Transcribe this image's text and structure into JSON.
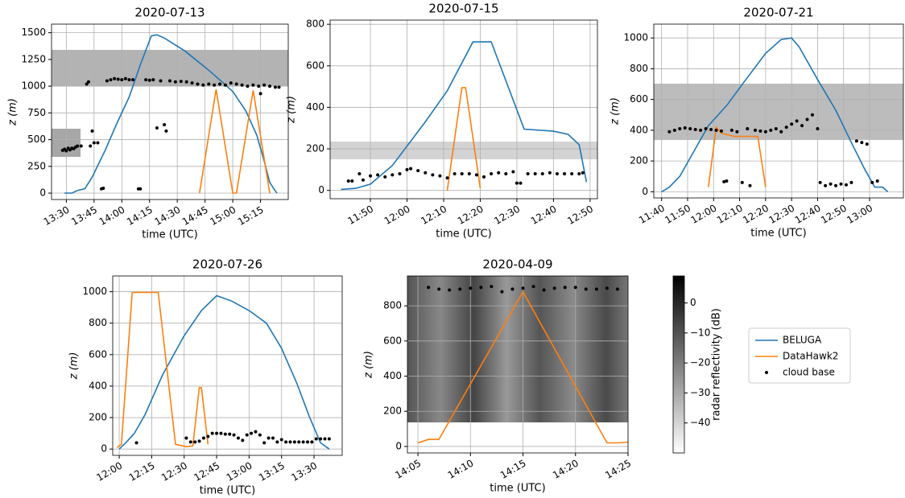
{
  "chart_data": [
    {
      "type": "line",
      "title": "2020-07-13",
      "xlabel": "time (UTC)",
      "ylabel": "z (m)",
      "grid": true,
      "xlim": [
        "13:22",
        "15:30"
      ],
      "xticks": [
        "13:30",
        "13:45",
        "14:00",
        "14:15",
        "14:30",
        "14:45",
        "15:00",
        "15:15"
      ],
      "ylim": [
        -60,
        1580
      ],
      "yticks": [
        0,
        250,
        500,
        750,
        1000,
        1250,
        1500
      ],
      "series": [
        {
          "name": "BELUGA",
          "kind": "line",
          "color": "#1f77b4",
          "x": [
            "13:29",
            "13:33",
            "13:36",
            "13:40",
            "13:44",
            "13:51",
            "13:57",
            "14:04",
            "14:10",
            "14:16",
            "14:19",
            "14:23",
            "14:34",
            "14:47",
            "15:00",
            "15:07",
            "15:13",
            "15:17",
            "15:20",
            "15:23",
            "15:24"
          ],
          "values": [
            0,
            0,
            25,
            40,
            150,
            400,
            640,
            900,
            1200,
            1470,
            1480,
            1450,
            1330,
            1150,
            950,
            770,
            540,
            300,
            100,
            20,
            0
          ]
        },
        {
          "name": "DataHawk2",
          "kind": "line",
          "color": "#ff7f0e",
          "x": [
            "14:42",
            "14:51",
            "15:00",
            "15:02",
            "15:11",
            "15:20"
          ],
          "values": [
            0,
            970,
            0,
            0,
            960,
            0
          ]
        },
        {
          "name": "cloud base",
          "kind": "scatter",
          "color": "#000000",
          "x": [
            "13:28",
            "13:29",
            "13:30",
            "13:31",
            "13:32",
            "13:33",
            "13:34",
            "13:35",
            "13:36",
            "13:38",
            "13:41",
            "13:42",
            "13:43",
            "13:44",
            "13:45",
            "13:47",
            "13:49",
            "13:50",
            "13:52",
            "13:54",
            "13:56",
            "13:58",
            "14:00",
            "14:02",
            "14:04",
            "14:06",
            "14:09",
            "14:10",
            "14:13",
            "14:15",
            "14:17",
            "14:19",
            "14:21",
            "14:23",
            "14:24",
            "14:26",
            "14:29",
            "14:32",
            "14:35",
            "14:38",
            "14:41",
            "14:44",
            "14:47",
            "14:50",
            "14:53",
            "14:56",
            "14:59",
            "15:02",
            "15:05",
            "15:08",
            "15:11",
            "15:14",
            "15:15",
            "15:17",
            "15:20",
            "15:23",
            "15:25"
          ],
          "values": [
            400,
            410,
            395,
            420,
            405,
            420,
            415,
            430,
            440,
            440,
            1020,
            1040,
            440,
            580,
            470,
            470,
            40,
            45,
            1050,
            1060,
            1070,
            1065,
            1060,
            1070,
            1060,
            1060,
            40,
            40,
            1060,
            1055,
            1060,
            610,
            1050,
            640,
            580,
            1050,
            1040,
            1045,
            1040,
            1030,
            1020,
            1010,
            1020,
            1010,
            1020,
            1010,
            1030,
            1020,
            1010,
            1000,
            1010,
            1000,
            930,
            1010,
            1000,
            990,
            990
          ]
        }
      ]
    },
    {
      "type": "line",
      "title": "2020-07-15",
      "xlabel": "time (UTC)",
      "ylabel": "z (m)",
      "grid": true,
      "xlim": [
        "11:39",
        "12:52"
      ],
      "xticks": [
        "11:50",
        "12:00",
        "12:10",
        "12:20",
        "12:30",
        "12:40",
        "12:50"
      ],
      "ylim": [
        -40,
        820
      ],
      "yticks": [
        0,
        200,
        400,
        600,
        800
      ],
      "series": [
        {
          "name": "BELUGA",
          "kind": "line",
          "color": "#1f77b4",
          "x": [
            "11:42",
            "11:46",
            "11:50",
            "11:56",
            "12:05",
            "12:11",
            "12:18",
            "12:23",
            "12:32",
            "12:40",
            "12:44",
            "12:47",
            "12:49"
          ],
          "values": [
            5,
            10,
            30,
            120,
            330,
            480,
            715,
            715,
            295,
            285,
            270,
            220,
            40
          ]
        },
        {
          "name": "DataHawk2",
          "kind": "line",
          "color": "#ff7f0e",
          "x": [
            "12:11",
            "12:15",
            "12:16",
            "12:20"
          ],
          "values": [
            0,
            495,
            495,
            10
          ]
        },
        {
          "name": "cloud base",
          "kind": "scatter",
          "color": "#000000",
          "x": [
            "11:44",
            "11:45",
            "11:47",
            "11:48",
            "11:50",
            "11:52",
            "11:54",
            "11:56",
            "11:58",
            "12:00",
            "12:01",
            "12:03",
            "12:05",
            "12:07",
            "12:09",
            "12:11",
            "12:13",
            "12:15",
            "12:17",
            "12:19",
            "12:21",
            "12:23",
            "12:25",
            "12:27",
            "12:29",
            "12:30",
            "12:31",
            "12:33",
            "12:35",
            "12:37",
            "12:39",
            "12:41",
            "12:43",
            "12:45",
            "12:47",
            "12:48"
          ],
          "values": [
            45,
            45,
            80,
            50,
            70,
            75,
            65,
            75,
            80,
            100,
            105,
            95,
            85,
            75,
            70,
            60,
            80,
            80,
            80,
            75,
            65,
            80,
            85,
            80,
            90,
            35,
            35,
            80,
            80,
            80,
            85,
            80,
            80,
            80,
            80,
            85
          ]
        }
      ]
    },
    {
      "type": "line",
      "title": "2020-07-21",
      "xlabel": "time (UTC)",
      "ylabel": "z (m)",
      "grid": true,
      "xlim": [
        "11:37",
        "13:13"
      ],
      "xticks": [
        "11:40",
        "11:50",
        "12:00",
        "12:10",
        "12:20",
        "12:30",
        "12:40",
        "12:50",
        "13:00"
      ],
      "ylim": [
        -40,
        1090
      ],
      "yticks": [
        0,
        200,
        400,
        600,
        800,
        1000
      ],
      "series": [
        {
          "name": "BELUGA",
          "kind": "line",
          "color": "#1f77b4",
          "x": [
            "11:40",
            "11:43",
            "11:47",
            "11:52",
            "11:58",
            "12:05",
            "12:12",
            "12:20",
            "12:26",
            "12:30",
            "12:33",
            "12:40",
            "12:47",
            "12:53",
            "12:58",
            "13:02",
            "13:05",
            "13:07"
          ],
          "values": [
            0,
            30,
            100,
            250,
            430,
            560,
            720,
            900,
            990,
            1000,
            940,
            730,
            530,
            320,
            150,
            30,
            30,
            0
          ]
        },
        {
          "name": "DataHawk2",
          "kind": "line",
          "color": "#ff7f0e",
          "x": [
            "11:58",
            "12:01",
            "12:03",
            "12:08",
            "12:17",
            "12:20"
          ],
          "values": [
            30,
            420,
            380,
            360,
            360,
            30
          ]
        },
        {
          "name": "cloud base",
          "kind": "scatter",
          "color": "#000000",
          "x": [
            "11:43",
            "11:45",
            "11:47",
            "11:49",
            "11:51",
            "11:53",
            "11:55",
            "11:57",
            "11:59",
            "12:01",
            "12:03",
            "12:04",
            "12:05",
            "12:07",
            "12:09",
            "12:11",
            "12:13",
            "12:14",
            "12:16",
            "12:18",
            "12:20",
            "12:22",
            "12:24",
            "12:26",
            "12:28",
            "12:30",
            "12:32",
            "12:34",
            "12:36",
            "12:38",
            "12:40",
            "12:41",
            "12:43",
            "12:45",
            "12:47",
            "12:49",
            "12:51",
            "12:53",
            "12:55",
            "12:57",
            "12:59",
            "13:01",
            "13:03"
          ],
          "values": [
            390,
            400,
            410,
            415,
            410,
            405,
            400,
            410,
            405,
            400,
            395,
            65,
            70,
            400,
            390,
            60,
            410,
            40,
            400,
            395,
            390,
            400,
            410,
            390,
            420,
            440,
            460,
            430,
            470,
            500,
            410,
            60,
            40,
            50,
            40,
            50,
            45,
            60,
            330,
            320,
            310,
            60,
            70
          ]
        }
      ]
    },
    {
      "type": "line",
      "title": "2020-07-26",
      "xlabel": "time (UTC)",
      "ylabel": "z (m)",
      "grid": true,
      "xlim": [
        "11:57",
        "13:43"
      ],
      "xticks": [
        "12:00",
        "12:15",
        "12:30",
        "12:45",
        "13:00",
        "13:15",
        "13:30"
      ],
      "ylim": [
        -40,
        1100
      ],
      "yticks": [
        0,
        200,
        400,
        600,
        800,
        1000
      ],
      "series": [
        {
          "name": "BELUGA",
          "kind": "line",
          "color": "#1f77b4",
          "x": [
            "12:00",
            "12:03",
            "12:07",
            "12:12",
            "12:20",
            "12:30",
            "12:38",
            "12:45",
            "12:48",
            "12:52",
            "13:00",
            "13:08",
            "13:15",
            "13:22",
            "13:28",
            "13:33",
            "13:37"
          ],
          "values": [
            0,
            40,
            100,
            220,
            470,
            720,
            880,
            975,
            960,
            940,
            880,
            800,
            640,
            420,
            200,
            40,
            0
          ]
        },
        {
          "name": "DataHawk2",
          "kind": "line",
          "color": "#ff7f0e",
          "x": [
            "11:59",
            "12:01",
            "12:06",
            "12:18",
            "12:26",
            "12:31",
            "12:34",
            "12:37",
            "12:38",
            "12:41"
          ],
          "values": [
            10,
            30,
            995,
            995,
            30,
            15,
            20,
            390,
            390,
            30
          ]
        },
        {
          "name": "cloud base",
          "kind": "scatter",
          "color": "#000000",
          "x": [
            "12:08",
            "12:31",
            "12:33",
            "12:35",
            "12:37",
            "12:39",
            "12:41",
            "12:43",
            "12:45",
            "12:47",
            "12:49",
            "12:51",
            "12:53",
            "12:55",
            "12:57",
            "12:59",
            "13:01",
            "13:03",
            "13:05",
            "13:07",
            "13:09",
            "13:11",
            "13:13",
            "13:15",
            "13:17",
            "13:19",
            "13:21",
            "13:23",
            "13:25",
            "13:27",
            "13:29",
            "13:31",
            "13:33",
            "13:35",
            "13:37"
          ],
          "values": [
            40,
            70,
            45,
            45,
            50,
            70,
            80,
            100,
            100,
            100,
            95,
            95,
            90,
            70,
            55,
            90,
            100,
            110,
            90,
            40,
            70,
            70,
            45,
            60,
            45,
            45,
            45,
            45,
            45,
            45,
            45,
            65,
            65,
            65,
            65
          ]
        }
      ]
    },
    {
      "type": "line",
      "title": "2020-04-09",
      "xlabel": "time (UTC)",
      "ylabel": "z (m)",
      "grid": true,
      "xlim": [
        "14:04",
        "14:25"
      ],
      "xticks": [
        "14:05",
        "14:10",
        "14:15",
        "14:20",
        "14:25"
      ],
      "ylim": [
        -37,
        970
      ],
      "yticks": [
        0,
        200,
        400,
        600,
        800
      ],
      "series": [
        {
          "name": "DataHawk2",
          "kind": "line",
          "color": "#ff7f0e",
          "x": [
            "14:05",
            "14:06",
            "14:07",
            "14:15",
            "14:23",
            "14:24",
            "14:25"
          ],
          "values": [
            20,
            40,
            40,
            880,
            20,
            20,
            25
          ]
        },
        {
          "name": "cloud base",
          "kind": "scatter",
          "color": "#000000",
          "x": [
            "14:06",
            "14:07",
            "14:08",
            "14:09",
            "14:10",
            "14:11",
            "14:12",
            "14:13",
            "14:14",
            "14:15",
            "14:16",
            "14:17",
            "14:18",
            "14:19",
            "14:20",
            "14:21",
            "14:22",
            "14:23",
            "14:24"
          ],
          "values": [
            905,
            895,
            890,
            895,
            900,
            905,
            910,
            880,
            895,
            900,
            910,
            890,
            900,
            905,
            905,
            895,
            895,
            900,
            895
          ]
        }
      ]
    }
  ],
  "colorbar": {
    "label": "radar reflectivity (dB)",
    "lim": [
      -50,
      9
    ],
    "ticks": [
      0,
      {
        "value": -10,
        "label": "−10"
      },
      {
        "value": -20,
        "label": "−20"
      },
      {
        "value": -30,
        "label": "−30"
      },
      {
        "value": -40,
        "label": "−40"
      }
    ]
  }
}
